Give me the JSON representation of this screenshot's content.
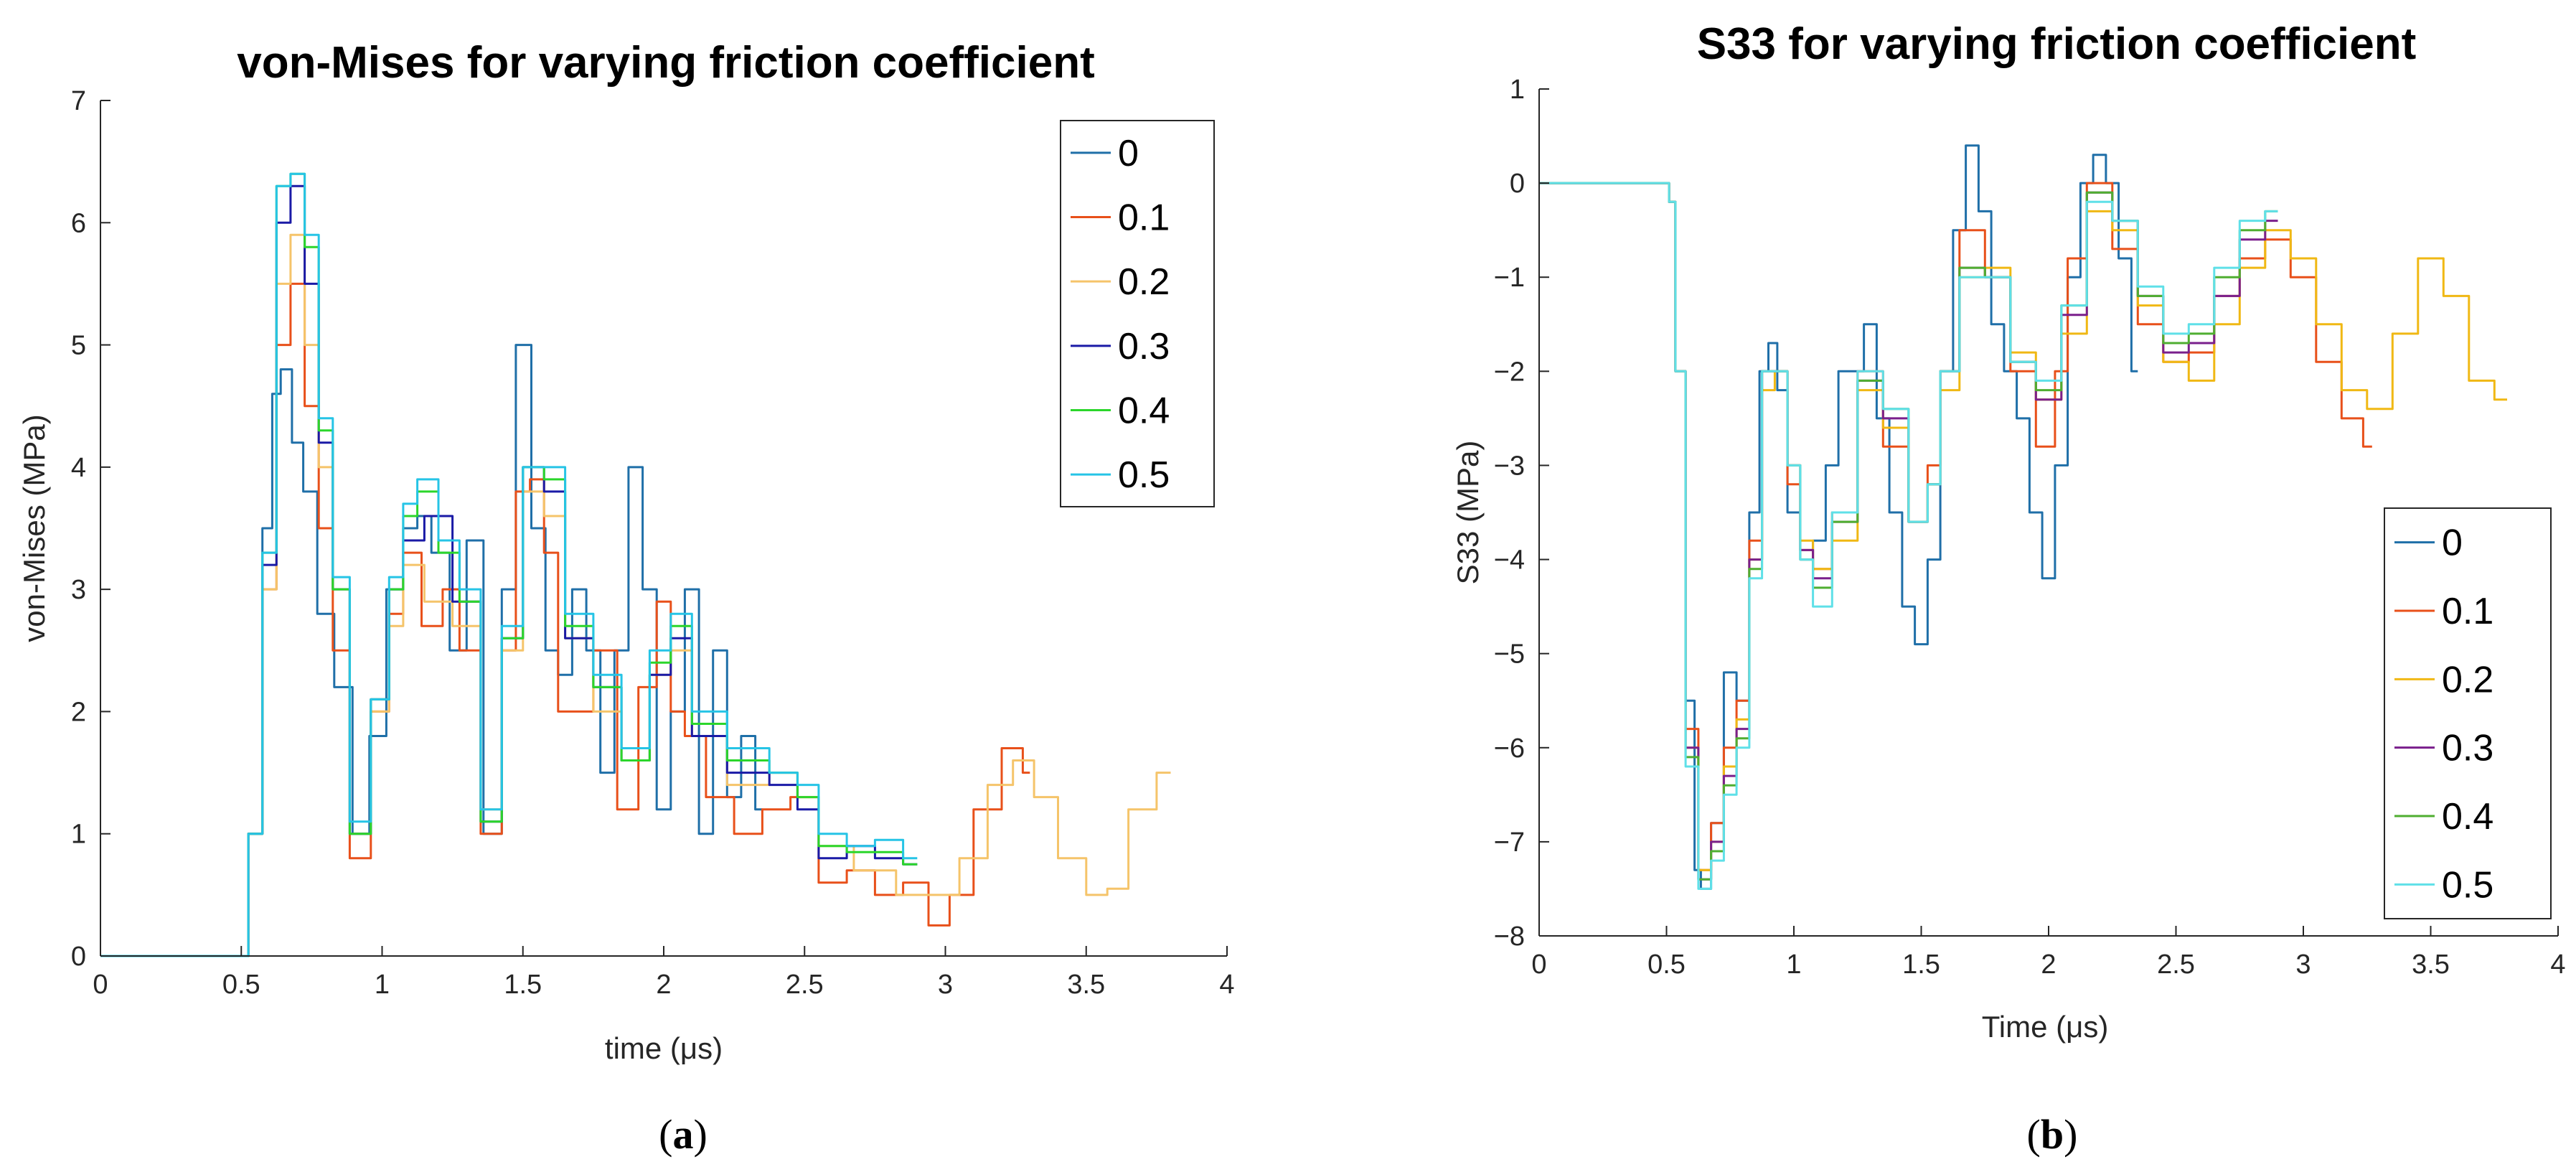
{
  "chart_data": [
    {
      "type": "line",
      "title": "von-Mises for varying friction coefficient",
      "xlabel": "time (μs)",
      "ylabel": "von-Mises (MPa)",
      "xlim": [
        0,
        4
      ],
      "ylim": [
        0,
        7
      ],
      "xticks": [
        "0",
        "0.5",
        "1",
        "1.5",
        "2",
        "2.5",
        "3",
        "3.5",
        "4"
      ],
      "yticks": [
        "0",
        "1",
        "2",
        "3",
        "4",
        "5",
        "6",
        "7"
      ],
      "grid": false,
      "legend_position": "top-right",
      "panel_label": "a",
      "series": [
        {
          "name": "0",
          "color": "#1f6fa8",
          "x": [
            0,
            0.5,
            0.55,
            0.6,
            0.62,
            0.66,
            0.7,
            0.74,
            0.8,
            0.86,
            0.93,
            0.98,
            1.05,
            1.1,
            1.15,
            1.2,
            1.28,
            1.32,
            1.4,
            1.45,
            1.5,
            1.56,
            1.6,
            1.65,
            1.7,
            1.75,
            1.8,
            1.85,
            1.9,
            1.95,
            2.0,
            2.05,
            2.1,
            2.15,
            2.2,
            2.25,
            2.3,
            2.35
          ],
          "y": [
            0,
            0,
            1.0,
            3.5,
            4.6,
            4.8,
            4.2,
            3.8,
            2.8,
            2.2,
            1.0,
            1.8,
            3.0,
            3.5,
            3.6,
            3.3,
            2.5,
            3.4,
            1.0,
            3.0,
            5.0,
            3.5,
            2.5,
            2.3,
            3.0,
            2.5,
            1.5,
            2.5,
            4.0,
            3.0,
            1.2,
            2.0,
            3.0,
            1.0,
            2.5,
            1.3,
            1.8,
            1.2
          ]
        },
        {
          "name": "0.1",
          "color": "#e8501a",
          "x": [
            0,
            0.5,
            0.55,
            0.6,
            0.65,
            0.7,
            0.75,
            0.8,
            0.85,
            0.92,
            1.0,
            1.05,
            1.1,
            1.18,
            1.25,
            1.3,
            1.4,
            1.45,
            1.5,
            1.55,
            1.6,
            1.65,
            1.7,
            1.8,
            1.87,
            1.95,
            2.0,
            2.05,
            2.1,
            2.2,
            2.3,
            2.4,
            2.5,
            2.6,
            2.7,
            2.8,
            2.9,
            2.98,
            3.05,
            3.15,
            3.25,
            3.3
          ],
          "y": [
            0,
            0,
            1.0,
            3.0,
            5.0,
            5.5,
            4.5,
            3.5,
            2.5,
            0.8,
            2.0,
            2.8,
            3.3,
            2.7,
            3.0,
            2.5,
            1.0,
            2.5,
            3.8,
            3.9,
            3.3,
            2.0,
            2.0,
            2.5,
            1.2,
            2.2,
            2.9,
            2.0,
            1.8,
            1.3,
            1.0,
            1.2,
            1.3,
            0.6,
            0.7,
            0.5,
            0.6,
            0.25,
            0.5,
            1.2,
            1.7,
            1.5
          ]
        },
        {
          "name": "0.2",
          "color": "#f5c46a",
          "x": [
            0,
            0.5,
            0.55,
            0.6,
            0.65,
            0.7,
            0.75,
            0.8,
            0.85,
            0.92,
            1.0,
            1.05,
            1.1,
            1.2,
            1.3,
            1.4,
            1.45,
            1.55,
            1.6,
            1.7,
            1.8,
            1.9,
            2.0,
            2.05,
            2.15,
            2.3,
            2.45,
            2.5,
            2.6,
            2.75,
            2.9,
            3.0,
            3.1,
            3.2,
            3.28,
            3.35,
            3.45,
            3.55,
            3.6,
            3.7,
            3.8
          ],
          "y": [
            0,
            0,
            1.0,
            3.0,
            5.5,
            5.9,
            5.0,
            4.0,
            3.0,
            1.0,
            2.0,
            2.7,
            3.2,
            2.9,
            2.7,
            1.2,
            2.5,
            3.8,
            3.6,
            2.6,
            2.0,
            1.6,
            2.3,
            2.5,
            1.8,
            1.4,
            1.5,
            1.3,
            0.9,
            0.7,
            0.5,
            0.5,
            0.8,
            1.4,
            1.6,
            1.3,
            0.8,
            0.5,
            0.55,
            1.2,
            1.5
          ]
        },
        {
          "name": "0.3",
          "color": "#1a1aa6",
          "x": [
            0,
            0.5,
            0.55,
            0.6,
            0.65,
            0.7,
            0.75,
            0.8,
            0.85,
            0.92,
            1.0,
            1.05,
            1.1,
            1.2,
            1.3,
            1.4,
            1.45,
            1.55,
            1.6,
            1.7,
            1.8,
            1.9,
            2.0,
            2.05,
            2.15,
            2.3,
            2.45,
            2.5,
            2.6,
            2.7,
            2.8,
            2.9
          ],
          "y": [
            0,
            0,
            1.0,
            3.2,
            6.0,
            6.3,
            5.5,
            4.2,
            3.0,
            1.0,
            2.1,
            3.0,
            3.4,
            3.6,
            2.9,
            1.1,
            2.6,
            4.0,
            3.8,
            2.6,
            2.2,
            1.6,
            2.3,
            2.6,
            1.8,
            1.5,
            1.4,
            1.2,
            0.8,
            0.9,
            0.8,
            0.75
          ]
        },
        {
          "name": "0.4",
          "color": "#2bd62b",
          "x": [
            0,
            0.5,
            0.55,
            0.6,
            0.65,
            0.7,
            0.75,
            0.8,
            0.85,
            0.92,
            1.0,
            1.05,
            1.1,
            1.15,
            1.25,
            1.3,
            1.4,
            1.45,
            1.55,
            1.6,
            1.7,
            1.8,
            1.9,
            2.0,
            2.05,
            2.15,
            2.3,
            2.45,
            2.5,
            2.6,
            2.7,
            2.8,
            2.9
          ],
          "y": [
            0,
            0,
            1.0,
            3.3,
            6.3,
            6.4,
            5.8,
            4.3,
            3.0,
            1.0,
            2.1,
            3.0,
            3.6,
            3.8,
            3.3,
            2.9,
            1.1,
            2.6,
            4.0,
            3.9,
            2.7,
            2.2,
            1.6,
            2.4,
            2.7,
            1.9,
            1.6,
            1.5,
            1.3,
            0.9,
            0.85,
            0.85,
            0.75
          ]
        },
        {
          "name": "0.5",
          "color": "#26c4e6",
          "x": [
            0,
            0.5,
            0.55,
            0.6,
            0.65,
            0.7,
            0.75,
            0.8,
            0.85,
            0.92,
            1.0,
            1.05,
            1.1,
            1.15,
            1.25,
            1.3,
            1.4,
            1.45,
            1.55,
            1.6,
            1.7,
            1.8,
            1.9,
            2.0,
            2.05,
            2.15,
            2.3,
            2.45,
            2.5,
            2.6,
            2.7,
            2.8,
            2.9
          ],
          "y": [
            0,
            0,
            1.0,
            3.3,
            6.3,
            6.4,
            5.9,
            4.4,
            3.1,
            1.1,
            2.1,
            3.1,
            3.7,
            3.9,
            3.4,
            3.0,
            1.2,
            2.7,
            4.0,
            4.0,
            2.8,
            2.3,
            1.7,
            2.5,
            2.8,
            2.0,
            1.7,
            1.5,
            1.4,
            1.0,
            0.9,
            0.95,
            0.8
          ]
        }
      ]
    },
    {
      "type": "line",
      "title": "S33 for varying friction coefficient",
      "xlabel": "Time (μs)",
      "ylabel": "S33 (MPa)",
      "xlim": [
        0,
        4
      ],
      "ylim": [
        -8,
        1
      ],
      "xticks": [
        "0",
        "0.5",
        "1",
        "1.5",
        "2",
        "2.5",
        "3",
        "3.5",
        "4"
      ],
      "yticks": [
        "−8",
        "−7",
        "−6",
        "−5",
        "−4",
        "−3",
        "−2",
        "−1",
        "0",
        "1"
      ],
      "grid": false,
      "legend_position": "bottom-right",
      "panel_label": "b",
      "series": [
        {
          "name": "0",
          "color": "#1f6fa8",
          "x": [
            0,
            0.5,
            0.52,
            0.55,
            0.6,
            0.62,
            0.65,
            0.7,
            0.75,
            0.8,
            0.85,
            0.88,
            0.92,
            0.95,
            1.0,
            1.05,
            1.1,
            1.15,
            1.2,
            1.25,
            1.3,
            1.35,
            1.4,
            1.45,
            1.5,
            1.55,
            1.6,
            1.65,
            1.7,
            1.75,
            1.8,
            1.85,
            1.9,
            1.95,
            2.0,
            2.05,
            2.1,
            2.15,
            2.2,
            2.25,
            2.3,
            2.35
          ],
          "y": [
            0,
            0,
            -0.2,
            -2.0,
            -5.5,
            -7.3,
            -7.5,
            -6.8,
            -5.2,
            -5.5,
            -3.5,
            -2.0,
            -1.7,
            -2.2,
            -3.5,
            -4.0,
            -3.8,
            -3.0,
            -2.0,
            -2.0,
            -1.5,
            -2.5,
            -3.5,
            -4.5,
            -4.9,
            -4.0,
            -2.0,
            -0.5,
            0.4,
            -0.3,
            -1.5,
            -2.0,
            -2.5,
            -3.5,
            -4.2,
            -3.0,
            -1.0,
            0.0,
            0.3,
            0.0,
            -0.8,
            -2.0
          ]
        },
        {
          "name": "0.1",
          "color": "#e8501a",
          "x": [
            0,
            0.5,
            0.52,
            0.55,
            0.6,
            0.65,
            0.7,
            0.75,
            0.8,
            0.85,
            0.9,
            0.95,
            1.0,
            1.05,
            1.1,
            1.2,
            1.3,
            1.4,
            1.5,
            1.55,
            1.6,
            1.7,
            1.8,
            1.9,
            2.0,
            2.05,
            2.1,
            2.2,
            2.3,
            2.4,
            2.5,
            2.6,
            2.7,
            2.8,
            2.9,
            3.0,
            3.1,
            3.2,
            3.27
          ],
          "y": [
            0,
            0,
            -0.2,
            -2.0,
            -5.8,
            -7.3,
            -6.8,
            -6.0,
            -5.5,
            -3.8,
            -2.0,
            -2.0,
            -3.2,
            -3.9,
            -4.1,
            -3.5,
            -2.0,
            -2.8,
            -3.6,
            -3.0,
            -2.0,
            -0.5,
            -1.0,
            -2.0,
            -2.8,
            -2.0,
            -0.8,
            0.0,
            -0.7,
            -1.5,
            -1.9,
            -1.8,
            -1.2,
            -0.8,
            -0.6,
            -1.0,
            -1.9,
            -2.5,
            -2.8
          ]
        },
        {
          "name": "0.2",
          "color": "#f0b814",
          "x": [
            0,
            0.5,
            0.52,
            0.55,
            0.6,
            0.65,
            0.7,
            0.75,
            0.8,
            0.85,
            0.9,
            0.95,
            1.0,
            1.05,
            1.1,
            1.2,
            1.3,
            1.4,
            1.5,
            1.55,
            1.6,
            1.7,
            1.8,
            1.9,
            2.0,
            2.1,
            2.2,
            2.3,
            2.4,
            2.5,
            2.6,
            2.7,
            2.8,
            2.9,
            3.0,
            3.1,
            3.2,
            3.3,
            3.4,
            3.5,
            3.6,
            3.7,
            3.8
          ],
          "y": [
            0,
            0,
            -0.2,
            -2.0,
            -6.0,
            -7.3,
            -7.0,
            -6.2,
            -5.7,
            -4.0,
            -2.2,
            -2.0,
            -3.0,
            -3.8,
            -4.1,
            -3.8,
            -2.2,
            -2.6,
            -3.6,
            -3.2,
            -2.2,
            -1.0,
            -0.9,
            -1.8,
            -2.3,
            -1.6,
            -0.3,
            -0.5,
            -1.3,
            -1.9,
            -2.1,
            -1.5,
            -0.9,
            -0.5,
            -0.8,
            -1.5,
            -2.2,
            -2.4,
            -1.6,
            -0.8,
            -1.2,
            -2.1,
            -2.3
          ]
        },
        {
          "name": "0.3",
          "color": "#7a1f8c",
          "x": [
            0,
            0.5,
            0.52,
            0.55,
            0.6,
            0.65,
            0.7,
            0.75,
            0.8,
            0.85,
            0.9,
            0.95,
            1.0,
            1.05,
            1.1,
            1.2,
            1.3,
            1.4,
            1.5,
            1.55,
            1.6,
            1.7,
            1.8,
            1.9,
            2.0,
            2.1,
            2.2,
            2.3,
            2.4,
            2.5,
            2.6,
            2.7,
            2.8,
            2.9
          ],
          "y": [
            0,
            0,
            -0.2,
            -2.0,
            -6.0,
            -7.4,
            -7.0,
            -6.3,
            -5.8,
            -4.0,
            -2.0,
            -2.0,
            -3.0,
            -3.9,
            -4.2,
            -3.6,
            -2.1,
            -2.5,
            -3.6,
            -3.2,
            -2.0,
            -0.9,
            -1.0,
            -1.9,
            -2.3,
            -1.4,
            -0.1,
            -0.4,
            -1.2,
            -1.8,
            -1.7,
            -1.2,
            -0.6,
            -0.4
          ]
        },
        {
          "name": "0.4",
          "color": "#4fae30",
          "x": [
            0,
            0.5,
            0.52,
            0.55,
            0.6,
            0.65,
            0.7,
            0.75,
            0.8,
            0.85,
            0.9,
            0.95,
            1.0,
            1.05,
            1.1,
            1.2,
            1.3,
            1.4,
            1.5,
            1.55,
            1.6,
            1.7,
            1.8,
            1.9,
            2.0,
            2.1,
            2.2,
            2.3,
            2.4,
            2.5,
            2.6,
            2.7,
            2.8,
            2.9
          ],
          "y": [
            0,
            0,
            -0.2,
            -2.0,
            -6.1,
            -7.4,
            -7.1,
            -6.4,
            -5.9,
            -4.1,
            -2.0,
            -2.0,
            -3.0,
            -4.0,
            -4.3,
            -3.6,
            -2.1,
            -2.4,
            -3.6,
            -3.2,
            -2.0,
            -0.9,
            -1.0,
            -1.9,
            -2.2,
            -1.3,
            -0.1,
            -0.4,
            -1.2,
            -1.7,
            -1.6,
            -1.0,
            -0.5,
            -0.3
          ]
        },
        {
          "name": "0.5",
          "color": "#5fe0e8",
          "x": [
            0,
            0.5,
            0.52,
            0.55,
            0.6,
            0.65,
            0.7,
            0.75,
            0.8,
            0.85,
            0.9,
            0.95,
            1.0,
            1.05,
            1.1,
            1.2,
            1.3,
            1.4,
            1.5,
            1.55,
            1.6,
            1.7,
            1.8,
            1.9,
            2.0,
            2.1,
            2.2,
            2.3,
            2.4,
            2.5,
            2.6,
            2.7,
            2.8,
            2.9
          ],
          "y": [
            0,
            0,
            -0.2,
            -2.0,
            -6.2,
            -7.5,
            -7.2,
            -6.5,
            -6.0,
            -4.2,
            -2.0,
            -2.0,
            -3.0,
            -4.0,
            -4.5,
            -3.5,
            -2.0,
            -2.4,
            -3.6,
            -3.2,
            -2.0,
            -1.0,
            -1.0,
            -1.9,
            -2.1,
            -1.3,
            -0.2,
            -0.4,
            -1.1,
            -1.6,
            -1.5,
            -0.9,
            -0.4,
            -0.3
          ]
        }
      ]
    }
  ]
}
